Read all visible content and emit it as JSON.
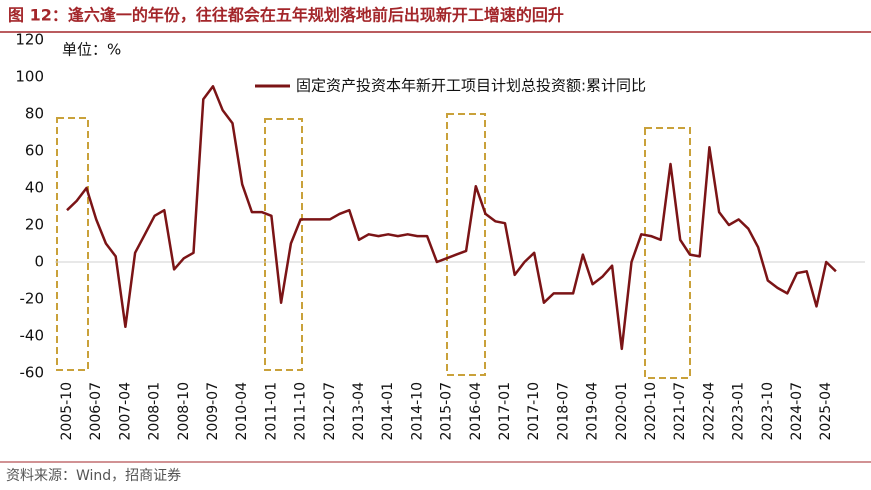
{
  "chart_data": {
    "type": "line",
    "title": "图 12：逢六逢一的年份，往往都会在五年规划落地前后出现新开工增速的回升",
    "unit": "单位：%",
    "source": "资料来源：Wind，招商证券",
    "categories": [
      "2005-10",
      null,
      null,
      "2006-07",
      null,
      null,
      "2007-04",
      null,
      null,
      "2008-01",
      null,
      null,
      "2008-10",
      null,
      null,
      "2009-07",
      null,
      null,
      "2010-04",
      null,
      null,
      "2011-01",
      null,
      null,
      "2011-10",
      null,
      null,
      "2012-07",
      null,
      null,
      "2013-04",
      null,
      null,
      "2014-01",
      null,
      null,
      "2014-10",
      null,
      null,
      "2015-07",
      null,
      null,
      "2016-04",
      null,
      null,
      "2017-01",
      null,
      null,
      "2017-10",
      null,
      null,
      "2018-07",
      null,
      null,
      "2019-04",
      null,
      null,
      "2020-01",
      null,
      null,
      "2020-10",
      null,
      null,
      "2021-07",
      null,
      null,
      "2022-04",
      null,
      null,
      "2023-01",
      null,
      null,
      "2023-10",
      null,
      null,
      "2024-07",
      null,
      null,
      "2025-04",
      null
    ],
    "series": [
      {
        "name": "固定资产投资本年新开工项目计划总投资额:累计同比",
        "color": "#7b1416",
        "values": [
          28,
          33,
          40,
          23,
          10,
          3,
          -35,
          5,
          15,
          25,
          28,
          -4,
          2,
          5,
          88,
          95,
          82,
          75,
          42,
          27,
          27,
          25,
          -22,
          10,
          23,
          23,
          23,
          23,
          26,
          28,
          12,
          15,
          14,
          15,
          14,
          15,
          14,
          14,
          0,
          2,
          4,
          6,
          41,
          26,
          22,
          21,
          -7,
          0,
          5,
          -22,
          -17,
          -17,
          -17,
          4,
          -12,
          -8,
          -2,
          -47,
          0,
          15,
          14,
          12,
          53,
          12,
          4,
          3,
          62,
          27,
          20,
          23,
          18,
          8,
          -10,
          -14,
          -17,
          -6,
          -5,
          -24,
          0,
          -5
        ]
      }
    ],
    "ylim": [
      -60,
      120
    ],
    "yticks": [
      120,
      100,
      80,
      60,
      40,
      20,
      0,
      -20,
      -40,
      -60
    ],
    "grid": false
  }
}
